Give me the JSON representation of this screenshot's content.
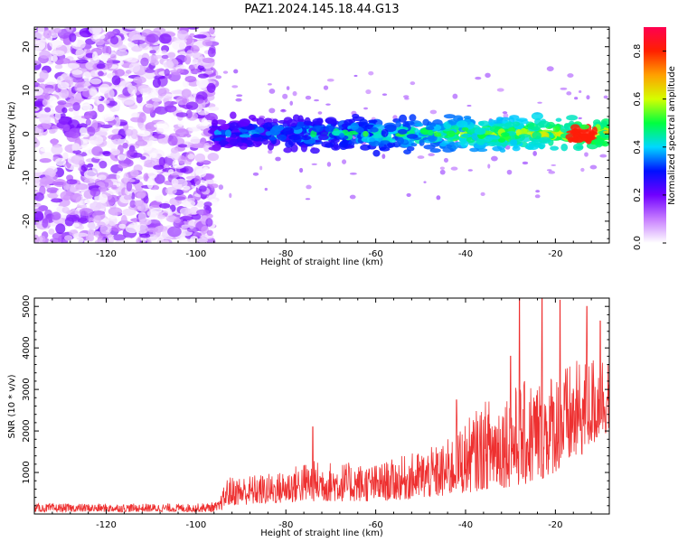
{
  "title": "PAZ1.2024.145.18.44.G13",
  "chart_data": [
    {
      "type": "heatmap",
      "xlabel": "Height of straight line (km)",
      "ylabel": "Frequency (Hz)",
      "xlim": [
        -136,
        -8
      ],
      "ylim": [
        -25,
        24.5
      ],
      "xticks": [
        -120,
        -100,
        -80,
        -60,
        -40,
        -20
      ],
      "yticks": [
        -20,
        -10,
        0,
        10,
        20
      ],
      "colorbar": {
        "label": "Normalized spectral amplitude",
        "range": [
          0,
          0.9
        ],
        "ticks": [
          0.0,
          0.2,
          0.4,
          0.6,
          0.8
        ],
        "colormap": "gist_rainbow_r",
        "colors": [
          "#ffffff",
          "#c77dff",
          "#7000ff",
          "#0010ff",
          "#00d8ff",
          "#00ff40",
          "#d4ff00",
          "#ffa000",
          "#ff2000",
          "#ff0050"
        ]
      },
      "regions": [
        {
          "name": "noise",
          "x_range": [
            -136,
            -96
          ],
          "y_range": [
            -25,
            24.5
          ],
          "amplitude_range": [
            0.0,
            0.2
          ]
        },
        {
          "name": "signal-band",
          "x_range": [
            -96,
            -8
          ],
          "center_freq": 0,
          "half_width_hz": 3,
          "amplitude_range": [
            0.1,
            0.9
          ],
          "max_near_x": -14
        }
      ]
    },
    {
      "type": "line",
      "xlabel": "Height of straight line (km)",
      "ylabel": "SNR (10 * v/v)",
      "xlim": [
        -136,
        -8
      ],
      "ylim": [
        0,
        5200
      ],
      "xticks": [
        -120,
        -100,
        -80,
        -60,
        -40,
        -20
      ],
      "yticks": [
        1000,
        2000,
        3000,
        4000,
        5000
      ],
      "color": "#ee3030",
      "envelope": [
        {
          "x": -136,
          "low": 50,
          "high": 250
        },
        {
          "x": -100,
          "low": 50,
          "high": 250
        },
        {
          "x": -95,
          "low": 50,
          "high": 300
        },
        {
          "x": -93,
          "low": 200,
          "high": 900
        },
        {
          "x": -82,
          "low": 250,
          "high": 1000
        },
        {
          "x": -75,
          "low": 300,
          "high": 1300
        },
        {
          "x": -60,
          "low": 300,
          "high": 1200
        },
        {
          "x": -45,
          "low": 400,
          "high": 1700
        },
        {
          "x": -35,
          "low": 600,
          "high": 2800
        },
        {
          "x": -25,
          "low": 700,
          "high": 3300
        },
        {
          "x": -15,
          "low": 1300,
          "high": 3700
        },
        {
          "x": -8,
          "low": 2000,
          "high": 4000
        }
      ],
      "peaks": [
        {
          "x": -74,
          "y": 2100
        },
        {
          "x": -42,
          "y": 2750
        },
        {
          "x": -30,
          "y": 3800
        },
        {
          "x": -28,
          "y": 5200
        },
        {
          "x": -23,
          "y": 5200
        },
        {
          "x": -19,
          "y": 5150
        },
        {
          "x": -13,
          "y": 5000
        },
        {
          "x": -10,
          "y": 4650
        }
      ]
    }
  ]
}
